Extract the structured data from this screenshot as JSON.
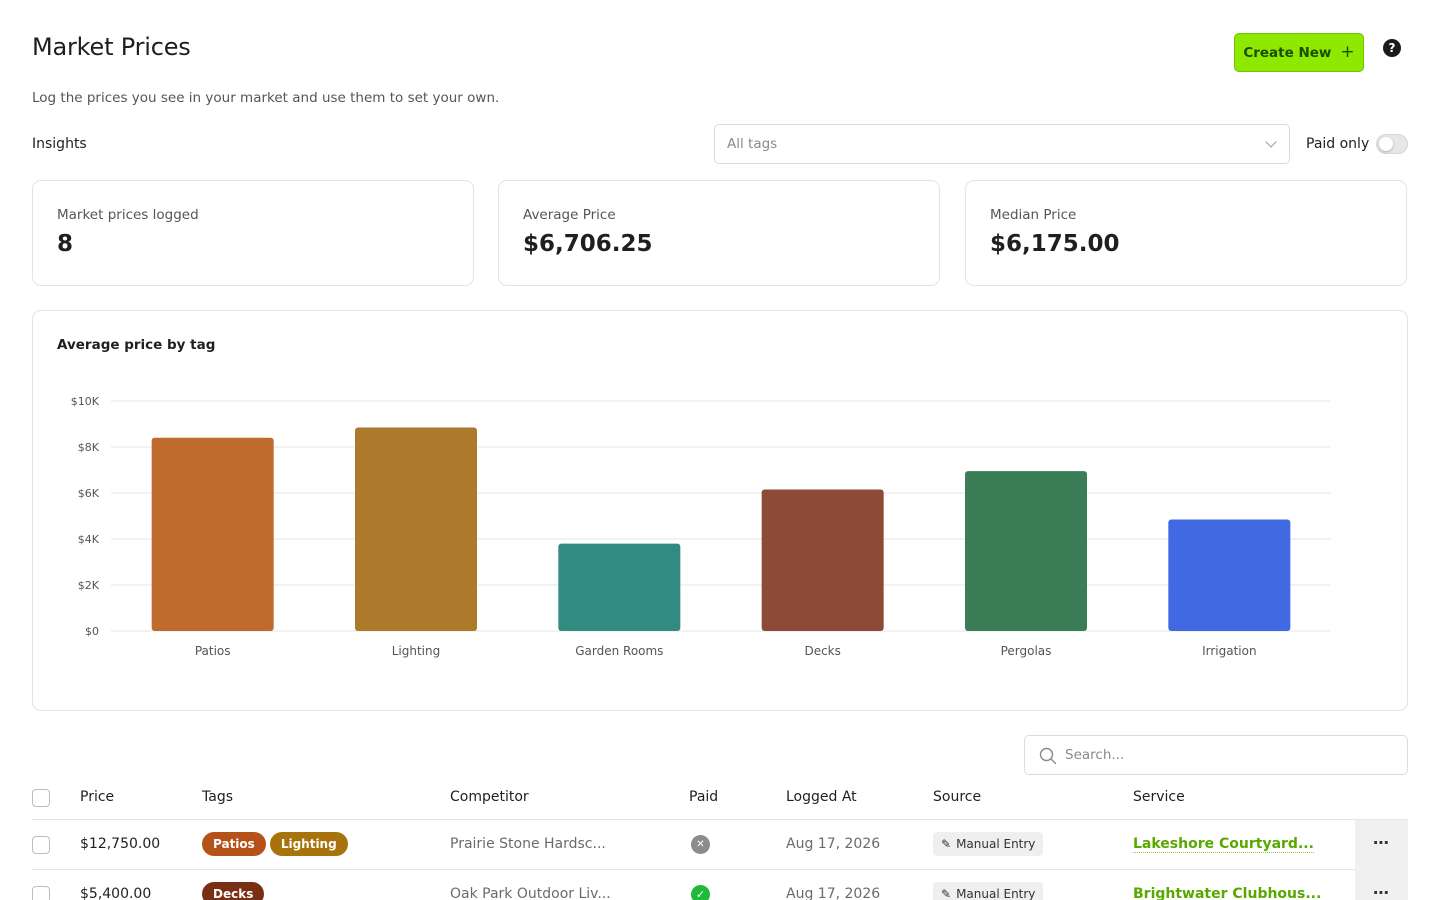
{
  "header": {
    "title": "Market Prices",
    "subtitle": "Log the prices you see in your market and use them to set your own.",
    "create_label": "Create New",
    "create_icon": "plus-icon",
    "help_icon": "help-circle-icon"
  },
  "filters": {
    "insights_label": "Insights",
    "tags_placeholder": "All tags",
    "paid_only_label": "Paid only",
    "paid_only_on": false
  },
  "stats": [
    {
      "label": "Market prices logged",
      "value": "8"
    },
    {
      "label": "Average Price",
      "value": "$6,706.25"
    },
    {
      "label": "Median Price",
      "value": "$6,175.00"
    }
  ],
  "chart_data": {
    "type": "bar",
    "title": "Average price by tag",
    "categories": [
      "Patios",
      "Lighting",
      "Garden Rooms",
      "Decks",
      "Pergolas",
      "Irrigation"
    ],
    "values": [
      8400,
      8850,
      3800,
      6150,
      6950,
      4850
    ],
    "colors": [
      "#c06b2e",
      "#ad7a2c",
      "#338a80",
      "#8d4a36",
      "#3a7d56",
      "#4169e1"
    ],
    "ylim": [
      0,
      10000
    ],
    "yticks": [
      {
        "value": 10000,
        "label": "$10K"
      },
      {
        "value": 8000,
        "label": "$8K"
      },
      {
        "value": 6000,
        "label": "$6K"
      },
      {
        "value": 4000,
        "label": "$4K"
      },
      {
        "value": 2000,
        "label": "$2K"
      },
      {
        "value": 0,
        "label": "$0"
      }
    ],
    "grid": true,
    "xlabel": "",
    "ylabel": ""
  },
  "table": {
    "search_placeholder": "Search...",
    "columns": [
      "Price",
      "Tags",
      "Competitor",
      "Paid",
      "Logged At",
      "Source",
      "Service"
    ],
    "rows": [
      {
        "price": "$12,750.00",
        "tags": [
          {
            "label": "Patios",
            "color": "#b5521a"
          },
          {
            "label": "Lighting",
            "color": "#a8720c"
          }
        ],
        "competitor": "Prairie Stone Hardsc...",
        "paid": false,
        "logged_at": "Aug 17, 2026",
        "source": "Manual Entry",
        "service": "Lakeshore Courtyard..."
      },
      {
        "price": "$5,400.00",
        "tags": [
          {
            "label": "Decks",
            "color": "#7a2e14"
          }
        ],
        "competitor": "Oak Park Outdoor Liv...",
        "paid": true,
        "logged_at": "Aug 17, 2026",
        "source": "Manual Entry",
        "service": "Brightwater Clubhous..."
      }
    ],
    "more_label": "⋯"
  }
}
